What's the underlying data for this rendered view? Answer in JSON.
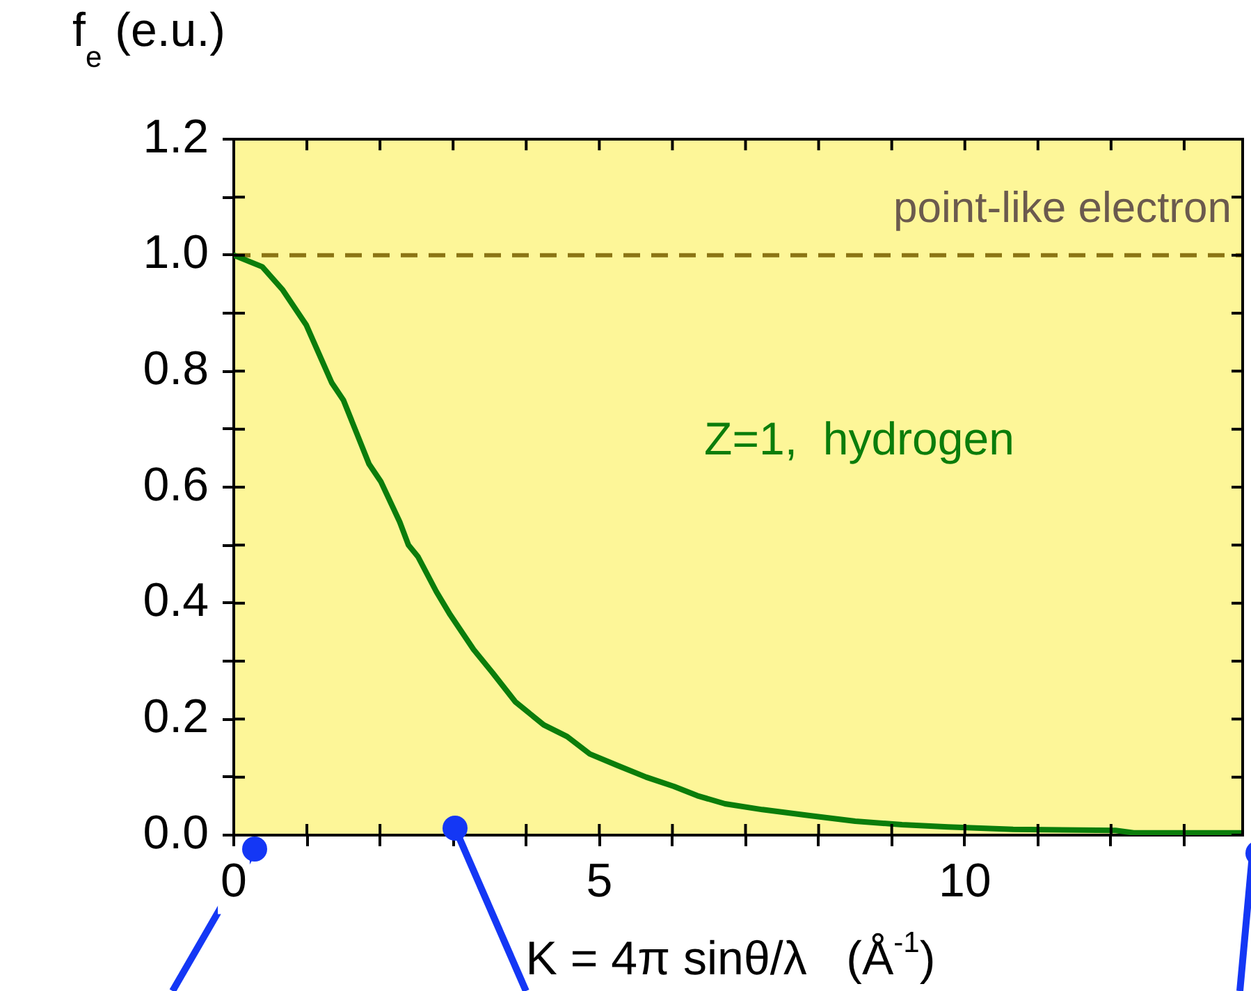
{
  "chart_data": {
    "type": "line",
    "xlabel": "K = 4π sinθ/λ   (Å$^{-1}$)",
    "ylabel": "f$_{e}$ (e.u.)",
    "xlim": [
      0,
      13.8
    ],
    "xticks": [
      0,
      {
        "value": 1,
        "label": null
      },
      {
        "value": 2,
        "label": null
      },
      {
        "value": 3,
        "label": null
      },
      {
        "value": 4,
        "label": null
      },
      5,
      {
        "value": 6,
        "label": null
      },
      {
        "value": 7,
        "label": null
      },
      {
        "value": 8,
        "label": null
      },
      {
        "value": 9,
        "label": null
      },
      10,
      {
        "value": 11,
        "label": null
      },
      {
        "value": 12,
        "label": null
      },
      {
        "value": 13,
        "label": null
      }
    ],
    "ylim": [
      0,
      1.2
    ],
    "yticks": [
      {
        "value": 0,
        "label": "0.0"
      },
      {
        "value": 0.1,
        "label": null
      },
      0.2,
      {
        "value": 0.3,
        "label": null
      },
      0.4,
      {
        "value": 0.5,
        "label": null
      },
      0.6,
      {
        "value": 0.7,
        "label": null
      },
      0.8,
      {
        "value": 0.9,
        "label": null
      },
      {
        "value": 1,
        "label": "1.0"
      },
      {
        "value": 1.1,
        "label": null
      },
      1.2
    ],
    "ref_lines": [
      {
        "axis": "y",
        "value": 1,
        "label": "point-like electron",
        "color": "#8b7514",
        "line_style": "dashed"
      }
    ],
    "series": [
      {
        "name": "Z=1,  hydrogen",
        "color": "#0b7d0b",
        "x": [
          0,
          0.39,
          0.67,
          0.99,
          1.34,
          1.5,
          1.85,
          2.01,
          2.27,
          2.39,
          2.52,
          2.77,
          2.96,
          3.28,
          3.54,
          3.85,
          4.24,
          4.56,
          4.87,
          5.25,
          5.64,
          6.02,
          6.34,
          6.72,
          7.23,
          7.86,
          8.5,
          9.14,
          9.77,
          10.66,
          12.06,
          12.31,
          13.78
        ],
        "values": [
          1.0,
          0.98,
          0.94,
          0.88,
          0.78,
          0.75,
          0.64,
          0.61,
          0.54,
          0.5,
          0.48,
          0.42,
          0.38,
          0.32,
          0.28,
          0.23,
          0.19,
          0.17,
          0.14,
          0.12,
          0.1,
          0.084,
          0.068,
          0.054,
          0.044,
          0.034,
          0.024,
          0.018,
          0.014,
          0.01,
          0.008,
          0.004,
          0.004
        ]
      }
    ]
  }
}
